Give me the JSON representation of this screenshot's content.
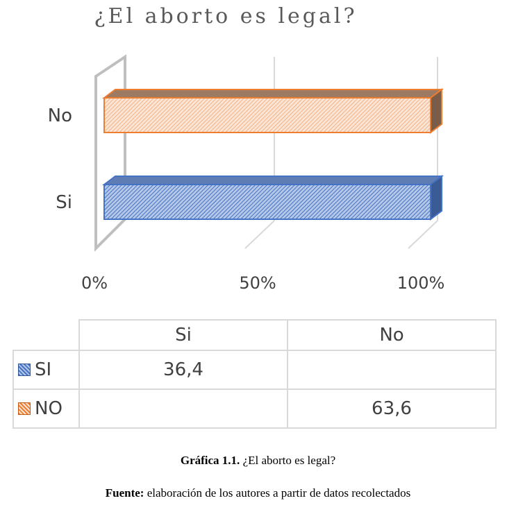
{
  "chart_data": {
    "type": "bar",
    "orientation": "horizontal",
    "title": "¿El aborto es legal?",
    "categories": [
      "No",
      "Si"
    ],
    "series": [
      {
        "name": "NO",
        "values": [
          100,
          0
        ],
        "color": "#ed7d31"
      },
      {
        "name": "SI",
        "values": [
          0,
          100
        ],
        "color": "#4472c4"
      }
    ],
    "x_ticks": [
      "0%",
      "50%",
      "100%"
    ],
    "xlim": [
      0,
      100
    ],
    "grid": true,
    "three_d": true
  },
  "data_table": {
    "headers": [
      "Si",
      "No"
    ],
    "rows": [
      {
        "key": "SI",
        "swatch": "si",
        "values": [
          "36,4",
          ""
        ]
      },
      {
        "key": "NO",
        "swatch": "no",
        "values": [
          "",
          "63,6"
        ]
      }
    ]
  },
  "caption": {
    "label": "Gráfica 1.1.",
    "text": "¿El aborto es legal?",
    "source_label": "Fuente:",
    "source_text": "elaboración de los autores a partir de datos recolectados"
  }
}
